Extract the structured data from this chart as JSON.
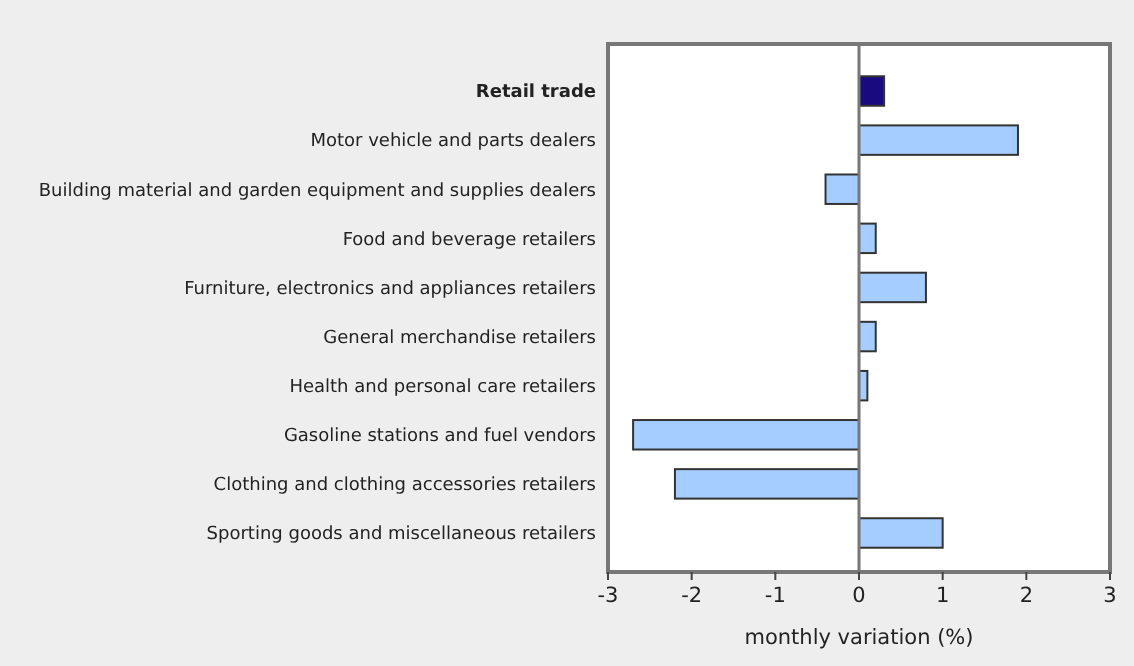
{
  "chart_data": {
    "type": "bar",
    "orientation": "horizontal",
    "xlabel": "monthly variation (%)",
    "categories": [
      "Retail trade",
      "Motor vehicle and parts dealers",
      "Building material and garden equipment and supplies dealers",
      "Food and beverage retailers",
      "Furniture, electronics and appliances retailers",
      "General merchandise retailers",
      "Health and personal care retailers",
      "Gasoline stations and fuel vendors",
      "Clothing and clothing accessories retailers",
      "Sporting goods and miscellaneous retailers"
    ],
    "values": [
      0.3,
      1.9,
      -0.4,
      0.2,
      0.8,
      0.2,
      0.1,
      -2.7,
      -2.2,
      1.0
    ],
    "colors": [
      "#1a0a80",
      "#a6cdff",
      "#a6cdff",
      "#a6cdff",
      "#a6cdff",
      "#a6cdff",
      "#a6cdff",
      "#a6cdff",
      "#a6cdff",
      "#a6cdff"
    ],
    "xlim": [
      -3,
      3
    ],
    "xticks": [
      -3,
      -2,
      -1,
      0,
      1,
      2,
      3
    ]
  }
}
